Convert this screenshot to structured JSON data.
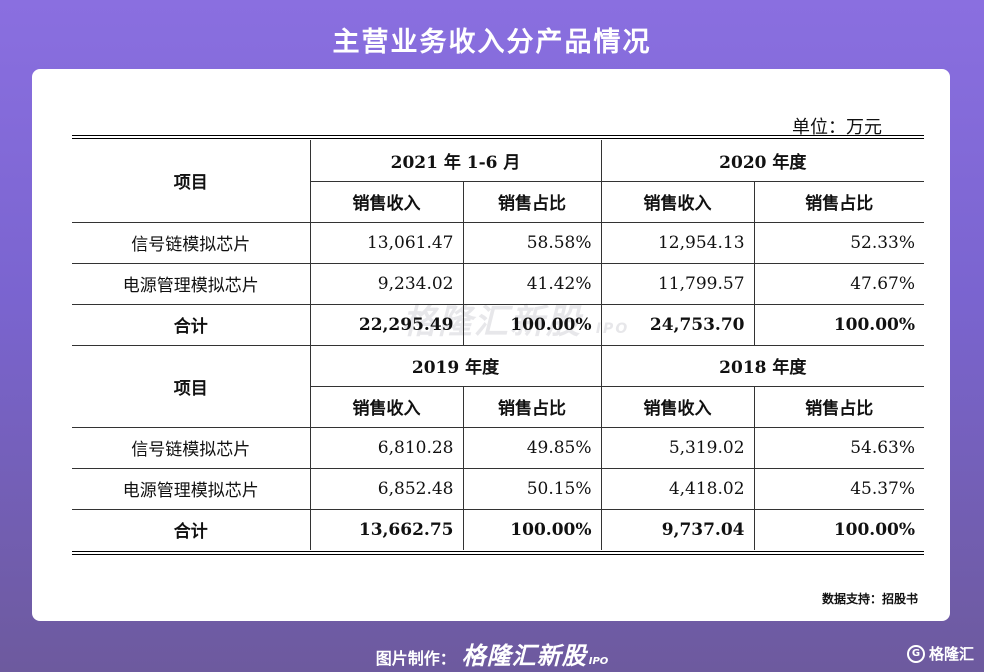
{
  "title": "主营业务收入分产品情况",
  "unit_label": "单位：万元",
  "watermark": {
    "main": "格隆汇新股",
    "sub": "IPO"
  },
  "table": {
    "sections": [
      {
        "item_header": "项目",
        "periods": [
          "2021 年 1-6 月",
          "2020 年度"
        ],
        "subheaders": [
          "销售收入",
          "销售占比",
          "销售收入",
          "销售占比"
        ],
        "rows": [
          {
            "name": "信号链模拟芯片",
            "values": [
              "13,061.47",
              "58.58%",
              "12,954.13",
              "52.33%"
            ]
          },
          {
            "name": "电源管理模拟芯片",
            "values": [
              "9,234.02",
              "41.42%",
              "11,799.57",
              "47.67%"
            ]
          },
          {
            "name": "合计",
            "values": [
              "22,295.49",
              "100.00%",
              "24,753.70",
              "100.00%"
            ]
          }
        ]
      },
      {
        "item_header": "项目",
        "periods": [
          "2019 年度",
          "2018 年度"
        ],
        "subheaders": [
          "销售收入",
          "销售占比",
          "销售收入",
          "销售占比"
        ],
        "rows": [
          {
            "name": "信号链模拟芯片",
            "values": [
              "6,810.28",
              "49.85%",
              "5,319.02",
              "54.63%"
            ]
          },
          {
            "name": "电源管理模拟芯片",
            "values": [
              "6,852.48",
              "50.15%",
              "4,418.02",
              "45.37%"
            ]
          },
          {
            "name": "合计",
            "values": [
              "13,662.75",
              "100.00%",
              "9,737.04",
              "100.00%"
            ]
          }
        ]
      }
    ]
  },
  "source": "数据支持：招股书",
  "footer": {
    "prefix": "图片制作：",
    "brand": "格隆汇新股",
    "brand_sub": "IPO"
  },
  "corner_logo": {
    "icon_text": "G",
    "text": "格隆汇"
  }
}
